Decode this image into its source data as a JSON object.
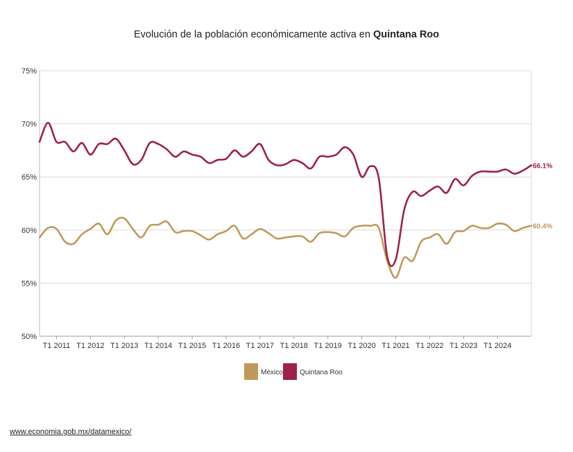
{
  "chart_data": {
    "type": "line",
    "title_prefix": "Evolución de la población económicamente activa en ",
    "title_bold": "Quintana Roo",
    "ylim": [
      50,
      75
    ],
    "y_ticks": [
      50,
      55,
      60,
      65,
      70,
      75
    ],
    "y_tick_labels": [
      "50%",
      "55%",
      "60%",
      "65%",
      "70%",
      "75%"
    ],
    "x_tick_labels": [
      "T1 2011",
      "T1 2012",
      "T1 2013",
      "T1 2014",
      "T1 2015",
      "T1 2016",
      "T1 2017",
      "T1 2018",
      "T1 2019",
      "T1 2020",
      "T1 2021",
      "T1 2022",
      "T1 2023",
      "T1 2024"
    ],
    "x_start": "T3 2010",
    "x_end": "T4 2024",
    "grid": true,
    "legend_position": "bottom-center",
    "series": [
      {
        "name": "México",
        "color": "#bf9a5c",
        "end_label": "60.4%",
        "values": [
          59.3,
          60.2,
          60.1,
          58.9,
          58.7,
          59.6,
          60.1,
          60.6,
          59.6,
          60.9,
          61.1,
          60.1,
          59.3,
          60.4,
          60.5,
          60.8,
          59.8,
          59.9,
          59.9,
          59.5,
          59.1,
          59.6,
          59.9,
          60.4,
          59.2,
          59.6,
          60.1,
          59.7,
          59.2,
          59.3,
          59.4,
          59.4,
          58.9,
          59.7,
          59.8,
          59.7,
          59.4,
          60.2,
          60.4,
          60.4,
          60.2,
          57.1,
          55.5,
          57.4,
          57.1,
          58.9,
          59.3,
          59.6,
          58.7,
          59.8,
          59.9,
          60.4,
          60.2,
          60.2,
          60.6,
          60.5,
          59.9,
          60.2,
          60.4
        ]
      },
      {
        "name": "Quintana Roo",
        "color": "#9d2148",
        "end_label": "66.1%",
        "values": [
          68.3,
          70.1,
          68.3,
          68.3,
          67.4,
          68.2,
          67.1,
          68.1,
          68.1,
          68.6,
          67.5,
          66.2,
          66.6,
          68.2,
          68.1,
          67.6,
          66.9,
          67.4,
          67.1,
          66.9,
          66.3,
          66.6,
          66.7,
          67.5,
          66.9,
          67.4,
          68.1,
          66.6,
          66.1,
          66.2,
          66.6,
          66.3,
          65.8,
          66.9,
          66.9,
          67.1,
          67.8,
          67.1,
          65.0,
          66.0,
          64.9,
          57.5,
          57.2,
          61.9,
          63.6,
          63.2,
          63.7,
          64.1,
          63.5,
          64.8,
          64.2,
          65.1,
          65.5,
          65.5,
          65.5,
          65.7,
          65.3,
          65.6,
          66.1
        ]
      }
    ]
  },
  "footer": {
    "source_link": "www.economia.gob.mx/datamexico/"
  }
}
